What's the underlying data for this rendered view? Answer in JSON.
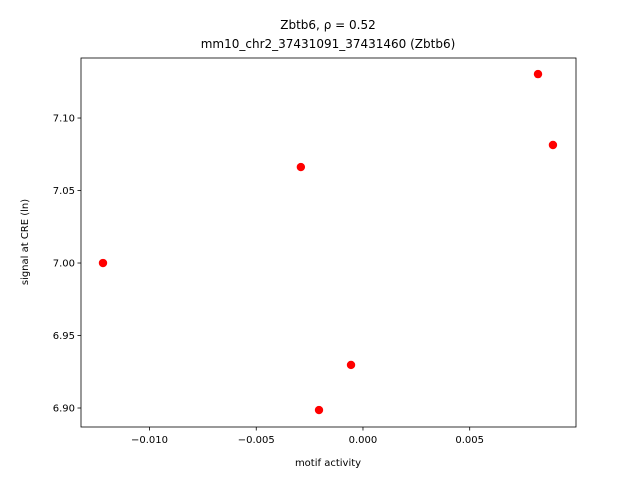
{
  "chart_data": {
    "type": "scatter",
    "title": "Zbtb6, ρ = 0.52",
    "subtitle": "mm10_chr2_37431091_37431460 (Zbtb6)",
    "x_label": "motif activity",
    "y_label": "signal at CRE (ln)",
    "color": "#ff0000",
    "x": [
      -0.01218,
      -0.00291,
      -0.00206,
      -0.00056,
      0.0082,
      0.0089
    ],
    "values": [
      7.0,
      7.0662,
      6.8986,
      6.9297,
      7.1303,
      7.0814
    ],
    "xlim": [
      -0.01321,
      0.00998
    ],
    "ylim": [
      6.8869,
      7.1414
    ],
    "xticks": [
      {
        "value": -0.01,
        "label": "−0.010"
      },
      {
        "value": -0.005,
        "label": "−0.005"
      },
      {
        "value": 0,
        "label": "0.000"
      },
      0.005
    ],
    "yticks": [
      {
        "value": 6.9,
        "label": "6.90"
      },
      6.95,
      {
        "value": 7.0,
        "label": "7.00"
      },
      7.05,
      {
        "value": 7.1,
        "label": "7.10"
      }
    ]
  }
}
